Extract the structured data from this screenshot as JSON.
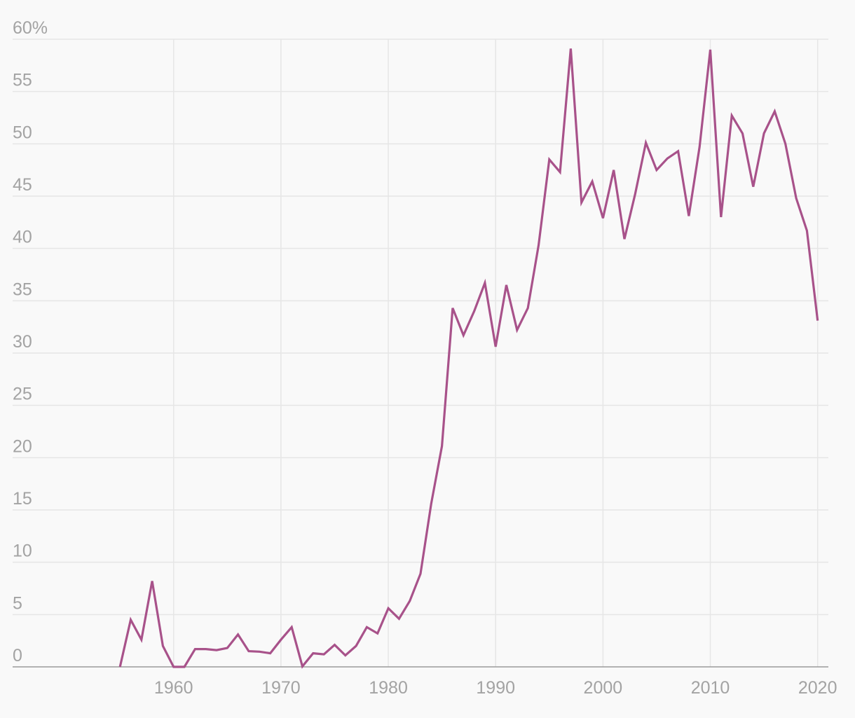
{
  "chart_data": {
    "type": "line",
    "title": "",
    "xlabel": "",
    "ylabel": "",
    "xlim": [
      1945,
      2021
    ],
    "ylim": [
      0,
      60
    ],
    "grid": true,
    "y_ticks": [
      0,
      5,
      10,
      15,
      20,
      25,
      30,
      35,
      40,
      45,
      50,
      55,
      60
    ],
    "y_tick_labels": [
      "0",
      "5",
      "10",
      "15",
      "20",
      "25",
      "30",
      "35",
      "40",
      "45",
      "50",
      "55",
      "60%"
    ],
    "x_ticks": [
      1960,
      1970,
      1980,
      1990,
      2000,
      2010,
      2020
    ],
    "x_tick_labels": [
      "1960",
      "1970",
      "1980",
      "1990",
      "2000",
      "2010",
      "2020"
    ],
    "series": [
      {
        "color": "#a8528a",
        "x": [
          1955,
          1956,
          1957,
          1958,
          1959,
          1960,
          1961,
          1962,
          1963,
          1964,
          1965,
          1966,
          1967,
          1968,
          1969,
          1970,
          1971,
          1972,
          1973,
          1974,
          1975,
          1976,
          1977,
          1978,
          1979,
          1980,
          1981,
          1982,
          1983,
          1984,
          1985,
          1986,
          1987,
          1988,
          1989,
          1990,
          1991,
          1992,
          1993,
          1994,
          1995,
          1996,
          1997,
          1998,
          1999,
          2000,
          2001,
          2002,
          2003,
          2004,
          2005,
          2006,
          2007,
          2008,
          2009,
          2010,
          2011,
          2012,
          2013,
          2014,
          2015,
          2016,
          2017,
          2018,
          2019,
          2020
        ],
        "y": [
          0,
          4.5,
          2.6,
          8.2,
          2,
          0,
          0,
          1.7,
          1.7,
          1.6,
          1.8,
          3.1,
          1.5,
          1.45,
          1.3,
          2.6,
          3.8,
          0.05,
          1.3,
          1.2,
          2.1,
          1.1,
          2,
          3.8,
          3.2,
          5.6,
          4.6,
          6.3,
          8.9,
          15.6,
          21.1,
          34.3,
          31.7,
          34.0,
          36.7,
          30.6,
          36.5,
          32.2,
          34.3,
          40.3,
          48.5,
          47.3,
          59.1,
          44.4,
          46.4,
          42.9,
          47.5,
          40.9,
          45.2,
          50.1,
          47.5,
          48.6,
          49.3,
          43.1,
          49.7,
          59.0,
          43.0,
          52.7,
          51.0,
          45.9,
          51.0,
          53.1,
          50.0,
          44.8,
          41.7,
          33.1
        ]
      }
    ]
  }
}
